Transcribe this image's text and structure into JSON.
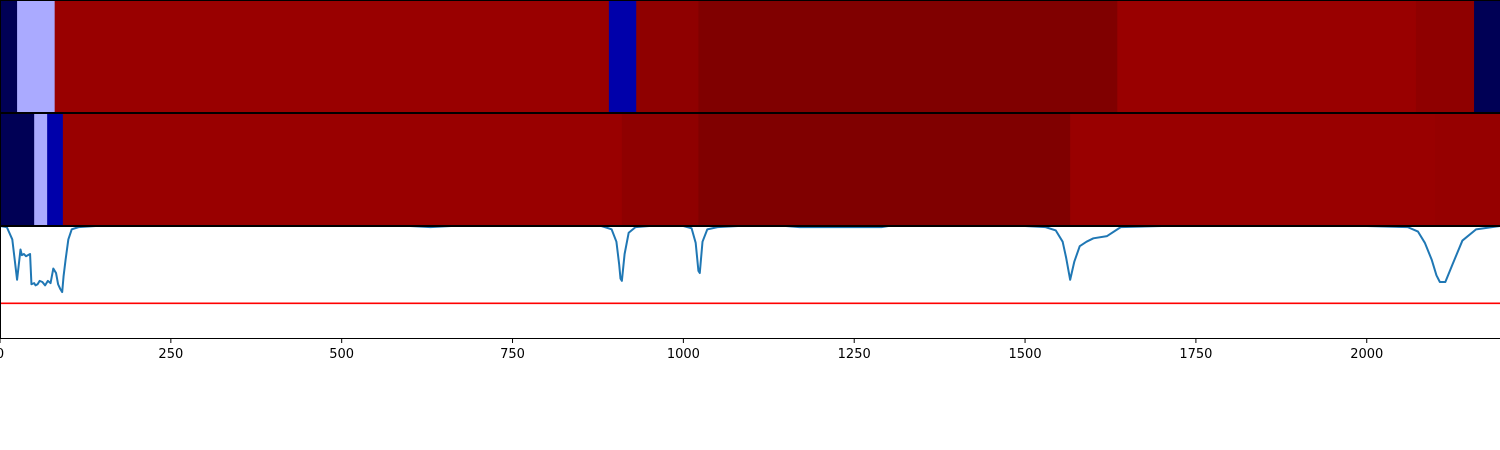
{
  "chart_data": [
    {
      "type": "heatmap",
      "row": "top",
      "colormap": "seismic",
      "segments": [
        {
          "x_start": 0,
          "x_end": 25,
          "color": "#000055"
        },
        {
          "x_start": 25,
          "x_end": 80,
          "color": "#aaaaff"
        },
        {
          "x_start": 80,
          "x_end": 891,
          "color": "#990000"
        },
        {
          "x_start": 891,
          "x_end": 931,
          "color": "#0000aa"
        },
        {
          "x_start": 931,
          "x_end": 1022,
          "color": "#8f0000"
        },
        {
          "x_start": 1022,
          "x_end": 1635,
          "color": "#800000"
        },
        {
          "x_start": 1635,
          "x_end": 2072,
          "color": "#990000"
        },
        {
          "x_start": 2072,
          "x_end": 2157,
          "color": "#8f0000"
        },
        {
          "x_start": 2157,
          "x_end": 2195,
          "color": "#000055"
        }
      ]
    },
    {
      "type": "heatmap",
      "row": "middle",
      "colormap": "seismic",
      "segments": [
        {
          "x_start": 0,
          "x_end": 50,
          "color": "#000055"
        },
        {
          "x_start": 50,
          "x_end": 69,
          "color": "#aaaaff"
        },
        {
          "x_start": 69,
          "x_end": 92,
          "color": "#0000aa"
        },
        {
          "x_start": 92,
          "x_end": 910,
          "color": "#990000"
        },
        {
          "x_start": 910,
          "x_end": 1022,
          "color": "#8f0000"
        },
        {
          "x_start": 1022,
          "x_end": 1566,
          "color": "#800000"
        },
        {
          "x_start": 1566,
          "x_end": 2100,
          "color": "#990000"
        },
        {
          "x_start": 2100,
          "x_end": 2195,
          "color": "#960000"
        }
      ]
    },
    {
      "type": "line",
      "row": "bottom",
      "xlim": [
        0,
        2195
      ],
      "ylim": [
        0,
        1
      ],
      "threshold": 0.31,
      "threshold_color": "#ff0000",
      "line_color": "#1f77b4",
      "series": [
        {
          "x": [
            0,
            10,
            18,
            25,
            30,
            32,
            35,
            38,
            44,
            46,
            50,
            52,
            55,
            58,
            62,
            66,
            70,
            74,
            78,
            82,
            85,
            88,
            91,
            93,
            96,
            100,
            105,
            115,
            140,
            200,
            400,
            600,
            630,
            660,
            700,
            880,
            895,
            902,
            906,
            908,
            910,
            914,
            920,
            930,
            950,
            1000,
            1012,
            1018,
            1022,
            1024,
            1028,
            1035,
            1050,
            1080,
            1150,
            1170,
            1290,
            1300,
            1400,
            1500,
            1530,
            1545,
            1555,
            1560,
            1566,
            1572,
            1580,
            1590,
            1600,
            1620,
            1640,
            1700,
            2000,
            2060,
            2075,
            2085,
            2095,
            2102,
            2107,
            2115,
            2125,
            2140,
            2160,
            2195
          ],
          "y": [
            1,
            0.99,
            0.88,
            0.52,
            0.79,
            0.74,
            0.75,
            0.73,
            0.75,
            0.48,
            0.49,
            0.47,
            0.48,
            0.51,
            0.5,
            0.47,
            0.51,
            0.49,
            0.62,
            0.58,
            0.48,
            0.44,
            0.41,
            0.55,
            0.7,
            0.88,
            0.97,
            0.99,
            1,
            1,
            1,
            1,
            0.99,
            1,
            1,
            1,
            0.97,
            0.86,
            0.66,
            0.53,
            0.51,
            0.75,
            0.94,
            0.99,
            1,
            1,
            0.98,
            0.85,
            0.6,
            0.58,
            0.86,
            0.97,
            0.99,
            1,
            1,
            0.99,
            0.99,
            1,
            1,
            1,
            0.99,
            0.96,
            0.86,
            0.72,
            0.52,
            0.68,
            0.82,
            0.86,
            0.89,
            0.91,
            0.99,
            1,
            1,
            0.99,
            0.95,
            0.85,
            0.7,
            0.56,
            0.5,
            0.5,
            0.65,
            0.87,
            0.97,
            1
          ]
        }
      ]
    }
  ],
  "x_axis": {
    "ticks": [
      0,
      250,
      500,
      750,
      1000,
      1250,
      1500,
      1750,
      2000
    ],
    "tick_labels": [
      "0",
      "250",
      "500",
      "750",
      "1000",
      "1250",
      "1500",
      "1750",
      "2000"
    ]
  }
}
